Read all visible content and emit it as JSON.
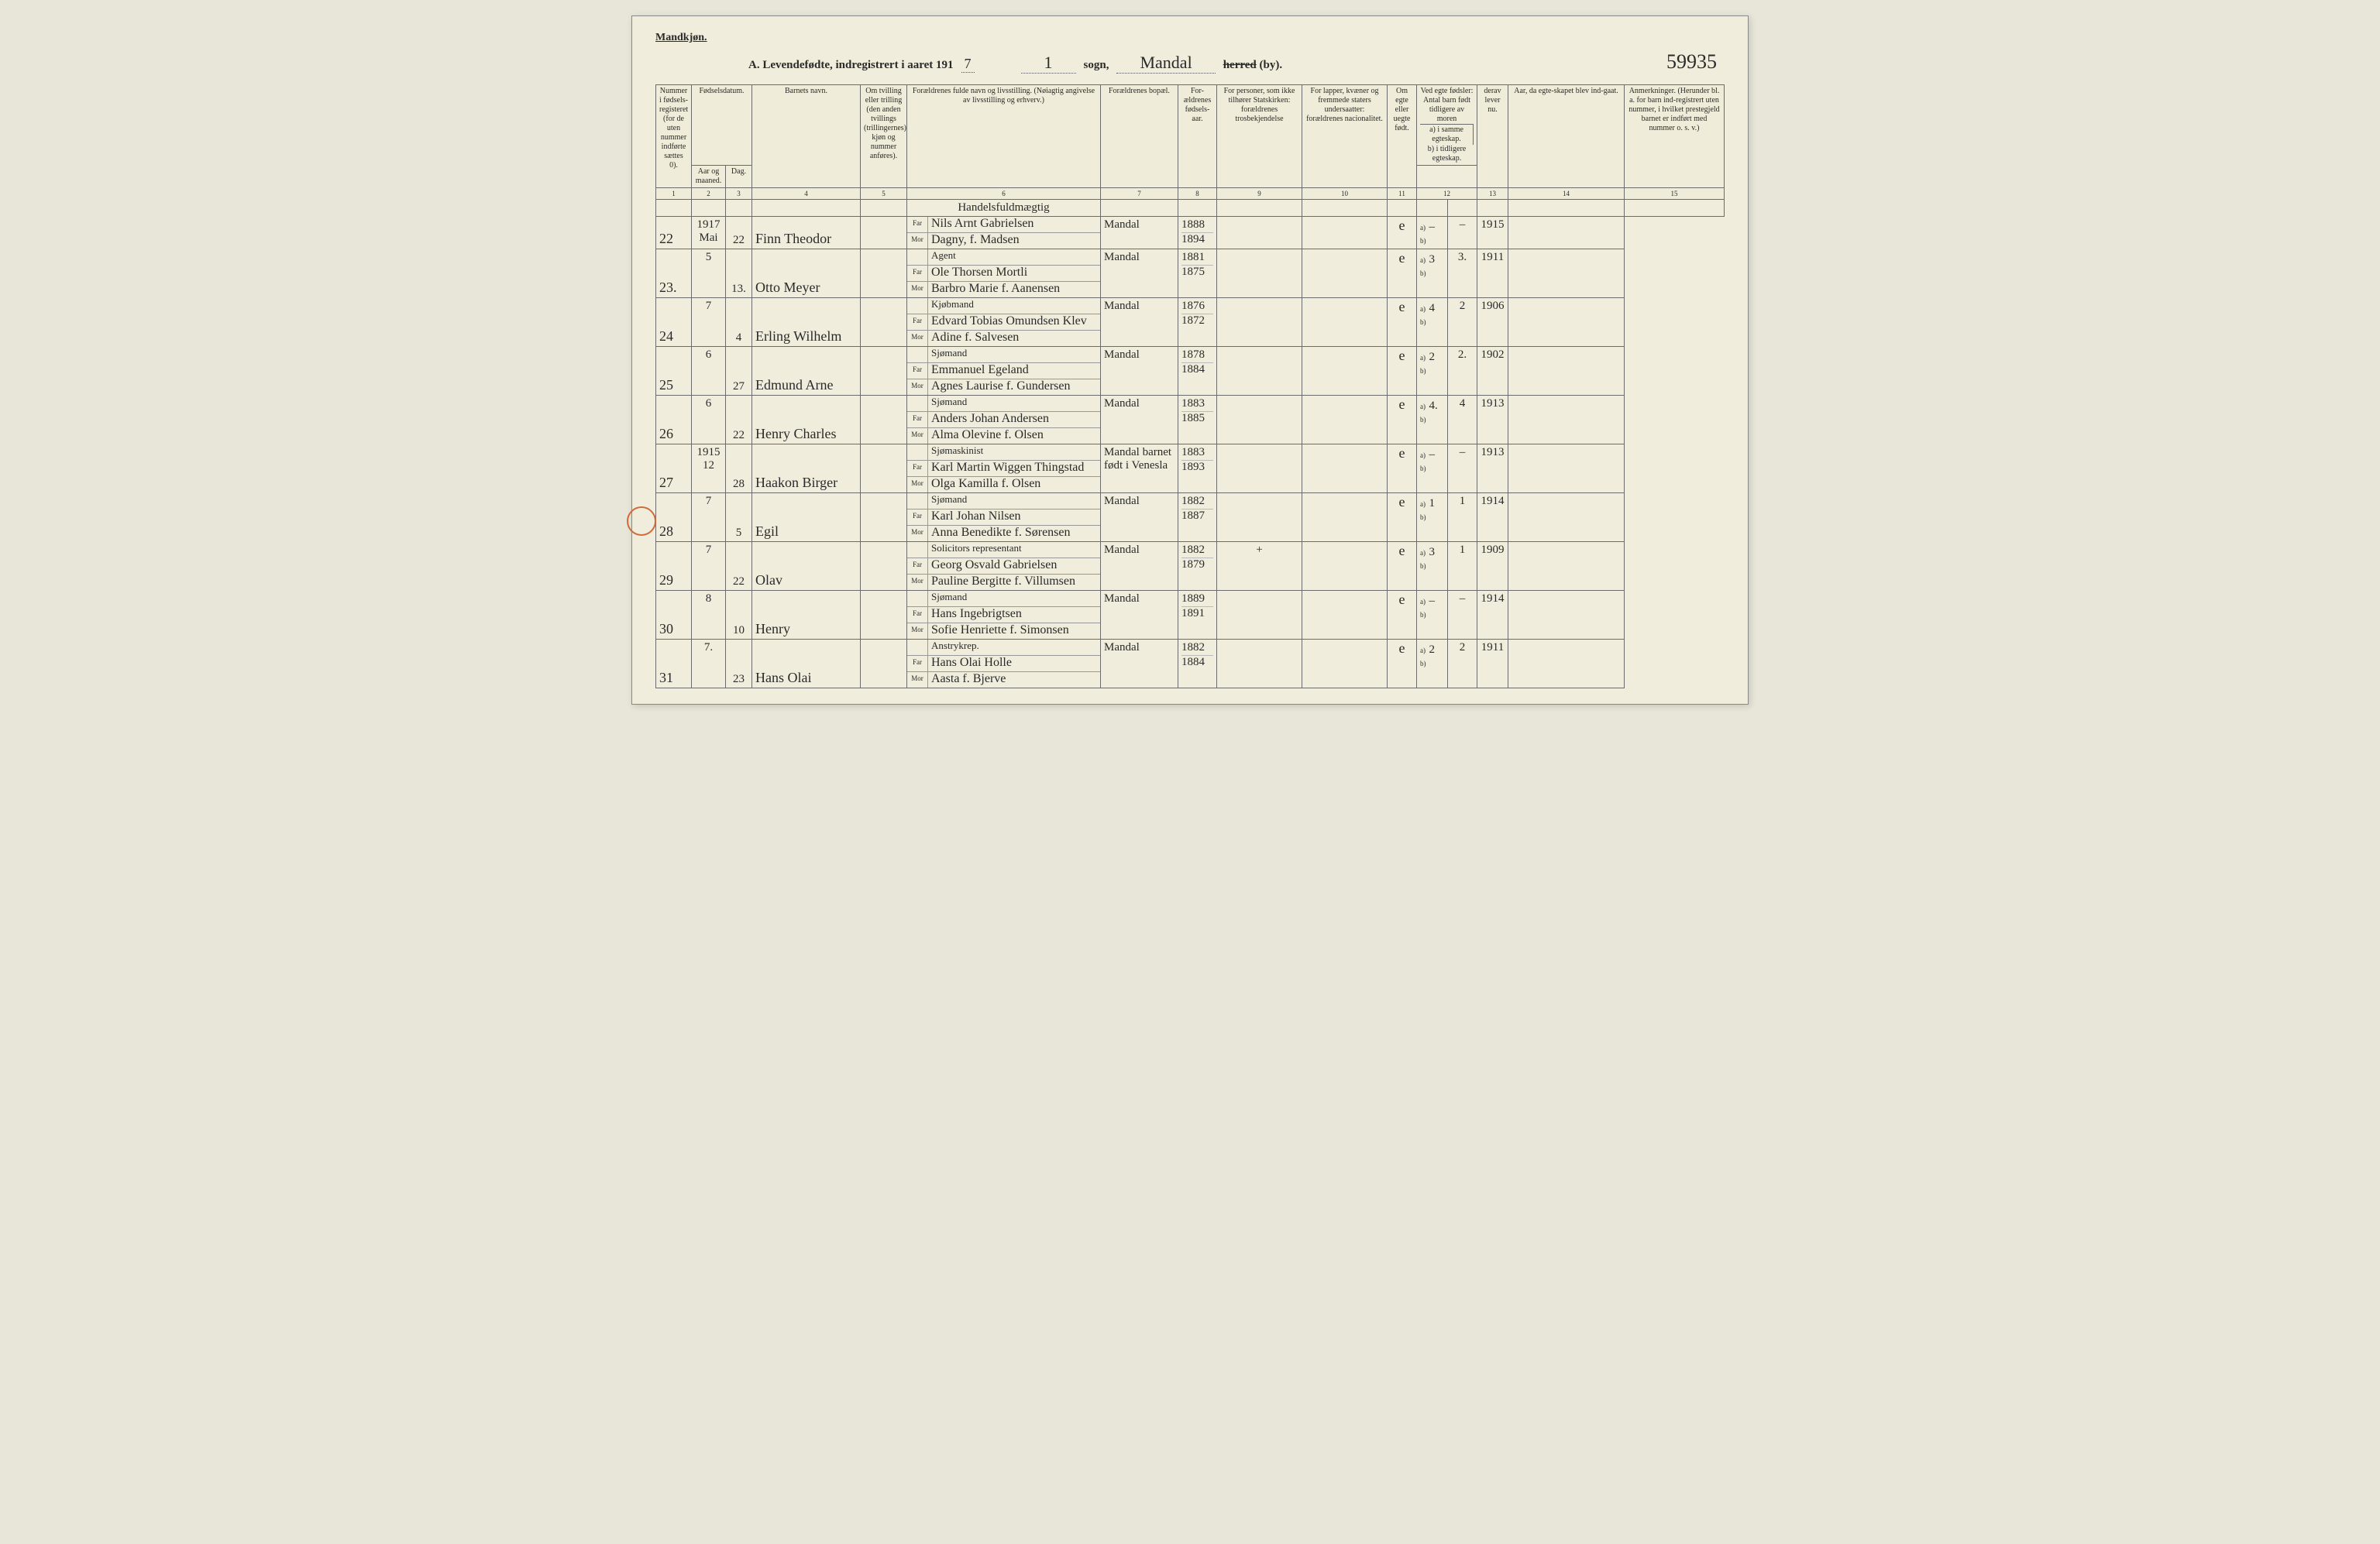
{
  "header": {
    "gender_label": "Mandkjøn.",
    "title_prefix": "A.  Levendefødte, indregistrert i aaret 191",
    "year_suffix": "7",
    "sogn_label": "sogn,",
    "sogn_value": "1",
    "herred_value": "Mandal",
    "herred_label_strike": "herred",
    "herred_label_after": "(by).",
    "page_code": "59935"
  },
  "columns": {
    "c1": "Nummer i fødsels-registeret (for de uten nummer indførte sættes 0).",
    "c2g": "Fødselsdatum.",
    "c2": "Aar og maaned.",
    "c3": "Dag.",
    "c4": "Barnets navn.",
    "c5": "Om tvilling eller trilling (den anden tvillings (trillingernes) kjøn og nummer anføres).",
    "c6": "Forældrenes fulde navn og livsstilling. (Nøiagtig angivelse av livsstilling og erhverv.)",
    "c7": "Forældrenes bopæl.",
    "c8": "For-ældrenes fødsels-aar.",
    "c9": "For personer, som ikke tilhører Statskirken: forældrenes trosbekjendelse",
    "c10": "For lapper, kvæner og fremmede staters undersaatter: forældrenes nacionalitet.",
    "c11": "Om egte eller uegte født.",
    "c12g": "Ved egte fødsler: Antal barn født tidligere av moren",
    "c12a": "a) i samme egteskap.",
    "c12b": "b) i tidligere egteskap.",
    "c13": "derav lever nu.",
    "c14": "Aar, da egte-skapet blev ind-gaat.",
    "c15": "Anmerkninger. (Herunder bl. a. for barn ind-registrert uten nummer, i hvilket prestegjeld barnet er indført med nummer o. s. v.)",
    "far": "Far",
    "mor": "Mor"
  },
  "colnums": [
    "1",
    "2",
    "3",
    "4",
    "5",
    "6",
    "7",
    "8",
    "9",
    "10",
    "11",
    "12",
    "13",
    "14",
    "15"
  ],
  "preline_occupation": "Handelsfuldmægtig",
  "rows": [
    {
      "num": "22",
      "ym": "1917 Mai",
      "day": "22",
      "child": "Finn Theodor",
      "far_occ": "",
      "far": "Nils Arnt Gabrielsen",
      "mor": "Dagny, f. Madsen",
      "bopael": "Mandal",
      "fy_far": "1888",
      "fy_mor": "1894",
      "egte": "e",
      "c12a": "–",
      "c13": "–",
      "c14": "1915"
    },
    {
      "num": "23.",
      "ym": "5",
      "day": "13.",
      "child": "Otto Meyer",
      "far_occ": "Agent",
      "far": "Ole Thorsen Mortli",
      "mor": "Barbro Marie f. Aanensen",
      "bopael": "Mandal",
      "fy_far": "1881",
      "fy_mor": "1875",
      "egte": "e",
      "c12a": "3",
      "c13": "3.",
      "c14": "1911"
    },
    {
      "num": "24",
      "ym": "7",
      "day": "4",
      "child": "Erling Wilhelm",
      "far_occ": "Kjøbmand",
      "far": "Edvard Tobias Omundsen Klev",
      "mor": "Adine f. Salvesen",
      "bopael": "Mandal",
      "fy_far": "1876",
      "fy_mor": "1872",
      "egte": "e",
      "c12a": "4",
      "c13": "2",
      "c14": "1906"
    },
    {
      "num": "25",
      "ym": "6",
      "day": "27",
      "child": "Edmund Arne",
      "far_occ": "Sjømand",
      "far": "Emmanuel Egeland",
      "mor": "Agnes Laurise f. Gundersen",
      "bopael": "Mandal",
      "fy_far": "1878",
      "fy_mor": "1884",
      "egte": "e",
      "c12a": "2",
      "c13": "2.",
      "c14": "1902"
    },
    {
      "num": "26",
      "ym": "6",
      "day": "22",
      "child": "Henry Charles",
      "far_occ": "Sjømand",
      "far": "Anders Johan Andersen",
      "mor": "Alma Olevine f. Olsen",
      "bopael": "Mandal",
      "fy_far": "1883",
      "fy_mor": "1885",
      "egte": "e",
      "c12a": "4.",
      "c13": "4",
      "c14": "1913"
    },
    {
      "num": "27",
      "ym": "1915  12",
      "day": "28",
      "child": "Haakon Birger",
      "circle": true,
      "far_occ": "Sjømaskinist",
      "far": "Karl Martin Wiggen Thingstad",
      "mor": "Olga Kamilla f. Olsen",
      "bopael": "Mandal barnet født i Venesla",
      "fy_far": "1883",
      "fy_mor": "1893",
      "egte": "e",
      "c12a": "–",
      "c13": "–",
      "c14": "1913"
    },
    {
      "num": "28",
      "ym": "7",
      "day": "5",
      "child": "Egil",
      "far_occ": "Sjømand",
      "far": "Karl Johan Nilsen",
      "mor": "Anna Benedikte f. Sørensen",
      "bopael": "Mandal",
      "fy_far": "1882",
      "fy_mor": "1887",
      "egte": "e",
      "c12a": "1",
      "c13": "1",
      "c14": "1914"
    },
    {
      "num": "29",
      "ym": "7",
      "day": "22",
      "child": "Olav",
      "far_occ": "Solicitors representant",
      "far": "Georg Osvald Gabrielsen",
      "mor": "Pauline Bergitte f. Villumsen",
      "bopael": "Mandal",
      "fy_far": "1882",
      "fy_mor": "1879",
      "c9": "+",
      "egte": "e",
      "c12a": "3",
      "c13": "1",
      "c14": "1909"
    },
    {
      "num": "30",
      "ym": "8",
      "day": "10",
      "child": "Henry",
      "far_occ": "Sjømand",
      "far": "Hans Ingebrigtsen",
      "mor": "Sofie Henriette f. Simonsen",
      "bopael": "Mandal",
      "fy_far": "1889",
      "fy_mor": "1891",
      "egte": "e",
      "c12a": "–",
      "c13": "–",
      "c14": "1914"
    },
    {
      "num": "31",
      "ym": "7.",
      "day": "23",
      "child": "Hans Olai",
      "far_occ": "Anstrykrep.",
      "far": "Hans Olai Holle",
      "mor": "Aasta f. Bjerve",
      "bopael": "Mandal",
      "fy_far": "1882",
      "fy_mor": "1884",
      "egte": "e",
      "c12a": "2",
      "c13": "2",
      "c14": "1911"
    }
  ]
}
